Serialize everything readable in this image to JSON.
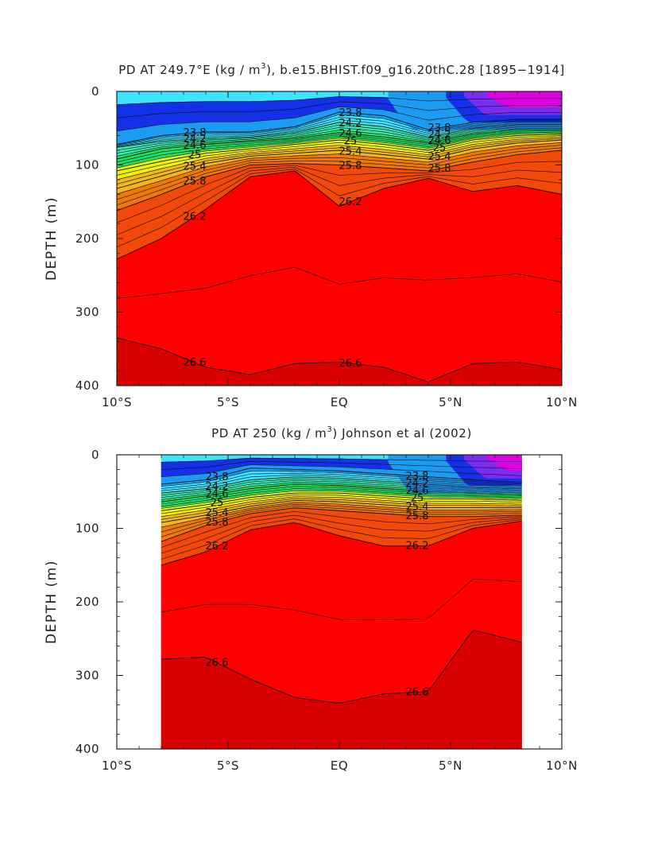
{
  "palette": {
    "densities": [
      22.6,
      23.0,
      23.4,
      23.8,
      24.2,
      24.6,
      25.0,
      25.4,
      25.8,
      26.2,
      26.6
    ],
    "colors": [
      "#e000e6",
      "#7a2cf0",
      "#1430e8",
      "#1a9cf2",
      "#3ce4ff",
      "#38e8b0",
      "#20e060",
      "#ecf00a",
      "#f2b818",
      "#f07808",
      "#f24808",
      "#ff0000",
      "#d80000"
    ],
    "background": "#ffffff"
  },
  "chart_data": [
    {
      "type": "contour",
      "title": "PD AT 249.7°E (kg / m³), b.e15.BHIST.f09_g16.20thC.28 [1895-1914]",
      "title_parts": {
        "main": "PD AT 249.7°E (kg / m",
        "sup": "3",
        "tail": "), b.e15.BHIST.f09_g16.20thC.28 ",
        "bracket_open": "[",
        "years": "1895−1914",
        "bracket_close": "]"
      },
      "ylabel": "DEPTH (m)",
      "xlabel": "",
      "xlim": [
        -10,
        10
      ],
      "ylim": [
        0,
        400
      ],
      "y_inverted": true,
      "x_ticks": [
        -10,
        -5,
        0,
        5,
        10
      ],
      "x_tick_labels": [
        "10°S",
        "5°S",
        "EQ",
        "5°N",
        "10°N"
      ],
      "y_ticks": [
        0,
        100,
        200,
        300,
        400
      ],
      "y_tick_labels": [
        "0",
        "100",
        "200",
        "300",
        "400"
      ],
      "data_x_range": [
        -10,
        10
      ],
      "isopycnals": [
        {
          "level": 23.8,
          "x": [
            -10,
            -8,
            -6,
            -4,
            -2,
            0,
            2,
            4,
            6,
            8,
            10
          ],
          "depth": [
            72,
            60,
            55,
            55,
            48,
            28,
            33,
            52,
            42,
            38,
            38
          ]
        },
        {
          "level": 24.2,
          "x": [
            -10,
            -8,
            -6,
            -4,
            -2,
            0,
            2,
            4,
            6,
            8,
            10
          ],
          "depth": [
            76,
            68,
            64,
            62,
            56,
            42,
            48,
            62,
            50,
            45,
            45
          ]
        },
        {
          "level": 24.6,
          "x": [
            -10,
            -8,
            -6,
            -4,
            -2,
            0,
            2,
            4,
            6,
            8,
            10
          ],
          "depth": [
            92,
            78,
            72,
            68,
            64,
            56,
            62,
            70,
            58,
            52,
            52
          ]
        },
        {
          "level": 25.0,
          "x": [
            -10,
            -8,
            -6,
            -4,
            -2,
            0,
            2,
            4,
            6,
            8,
            10
          ],
          "depth": [
            108,
            95,
            84,
            78,
            72,
            66,
            72,
            80,
            66,
            60,
            58
          ]
        },
        {
          "level": 25.4,
          "x": [
            -10,
            -8,
            -6,
            -4,
            -2,
            0,
            2,
            4,
            6,
            8,
            10
          ],
          "depth": [
            132,
            115,
            98,
            88,
            84,
            80,
            86,
            92,
            78,
            70,
            66
          ]
        },
        {
          "level": 25.8,
          "x": [
            -10,
            -8,
            -6,
            -4,
            -2,
            0,
            2,
            4,
            6,
            8,
            10
          ],
          "depth": [
            162,
            140,
            116,
            100,
            98,
            100,
            104,
            108,
            96,
            86,
            80
          ]
        },
        {
          "level": 26.2,
          "x": [
            -10,
            -8,
            -6,
            -4,
            -2,
            0,
            2,
            4,
            6,
            8,
            10
          ],
          "depth": [
            228,
            200,
            160,
            116,
            108,
            156,
            132,
            118,
            136,
            128,
            140
          ]
        },
        {
          "level": 26.6,
          "x": [
            -10,
            -8,
            -6,
            -4,
            -2,
            0,
            2,
            4,
            6,
            8,
            10
          ],
          "depth": [
            335,
            350,
            375,
            385,
            370,
            368,
            375,
            395,
            370,
            368,
            378
          ]
        }
      ],
      "contour_labels": [
        "22.6",
        "23.4",
        "23.8",
        "24.2",
        "24.6",
        "25",
        "25.4",
        "25.8",
        "26.2",
        "26.6"
      ]
    },
    {
      "type": "contour",
      "title": "PD AT 250 (kg / m³) Johnson et al (2002)",
      "title_parts": {
        "main": "PD AT 250 (kg / m",
        "sup": "3",
        "tail": ") Johnson et al (2002)"
      },
      "ylabel": "DEPTH (m)",
      "xlabel": "",
      "xlim": [
        -10,
        10
      ],
      "ylim": [
        0,
        400
      ],
      "y_inverted": true,
      "x_ticks": [
        -10,
        -5,
        0,
        5,
        10
      ],
      "x_tick_labels": [
        "10°S",
        "5°S",
        "EQ",
        "5°N",
        "10°N"
      ],
      "y_ticks": [
        0,
        100,
        200,
        300,
        400
      ],
      "y_tick_labels": [
        "0",
        "100",
        "200",
        "300",
        "400"
      ],
      "data_x_range": [
        -8,
        8.2
      ],
      "isopycnals": [
        {
          "level": 23.8,
          "x": [
            -8,
            -6,
            -4,
            -2,
            0,
            2,
            4,
            6,
            8.2
          ],
          "depth": [
            40,
            34,
            18,
            20,
            22,
            26,
            30,
            34,
            38
          ]
        },
        {
          "level": 24.2,
          "x": [
            -8,
            -6,
            -4,
            -2,
            0,
            2,
            4,
            6,
            8.2
          ],
          "depth": [
            52,
            46,
            34,
            30,
            32,
            36,
            40,
            44,
            46
          ]
        },
        {
          "level": 24.6,
          "x": [
            -8,
            -6,
            -4,
            -2,
            0,
            2,
            4,
            6,
            8.2
          ],
          "depth": [
            64,
            56,
            46,
            40,
            42,
            46,
            50,
            52,
            54
          ]
        },
        {
          "level": 25.0,
          "x": [
            -8,
            -6,
            -4,
            -2,
            0,
            2,
            4,
            6,
            8.2
          ],
          "depth": [
            76,
            68,
            58,
            52,
            52,
            56,
            60,
            60,
            62
          ]
        },
        {
          "level": 25.4,
          "x": [
            -8,
            -6,
            -4,
            -2,
            0,
            2,
            4,
            6,
            8.2
          ],
          "depth": [
            92,
            82,
            70,
            62,
            64,
            68,
            72,
            72,
            72
          ]
        },
        {
          "level": 25.8,
          "x": [
            -8,
            -6,
            -4,
            -2,
            0,
            2,
            4,
            6,
            8.2
          ],
          "depth": [
            118,
            96,
            80,
            72,
            76,
            80,
            84,
            84,
            82
          ]
        },
        {
          "level": 26.2,
          "x": [
            -8,
            -6,
            -4,
            -2,
            0,
            2,
            4,
            6,
            8.2
          ],
          "depth": [
            150,
            132,
            102,
            92,
            110,
            124,
            124,
            100,
            90
          ]
        },
        {
          "level": 26.6,
          "x": [
            -8,
            -6,
            -4,
            -2,
            0,
            2,
            4,
            6,
            8.2
          ],
          "depth": [
            278,
            275,
            305,
            330,
            338,
            325,
            322,
            238,
            255
          ]
        }
      ],
      "contour_labels": [
        "22.6",
        "23.4",
        "23.8",
        "24.2",
        "24.6",
        "25.4",
        "25.8",
        "26.2",
        "26.6"
      ]
    }
  ]
}
